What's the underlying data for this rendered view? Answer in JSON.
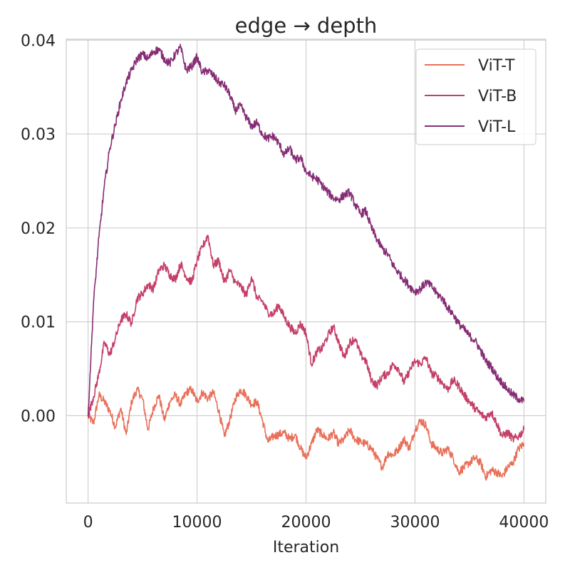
{
  "chart_data": {
    "type": "line",
    "title": "edge → depth",
    "xlabel": "Iteration",
    "ylabel": "",
    "xlim": [
      -2000,
      42000
    ],
    "ylim": [
      -0.0093,
      0.0401
    ],
    "xticks": [
      0,
      10000,
      20000,
      30000,
      40000
    ],
    "xtick_labels": [
      "0",
      "10000",
      "20000",
      "30000",
      "40000"
    ],
    "yticks": [
      0.0,
      0.01,
      0.02,
      0.03,
      0.04
    ],
    "ytick_labels": [
      "0.00",
      "0.01",
      "0.02",
      "0.03",
      "0.04"
    ],
    "grid": true,
    "legend_position": "top-right",
    "series": [
      {
        "name": "ViT-T",
        "color": "#e8705a",
        "x": [
          0,
          500,
          1000,
          1500,
          2000,
          2500,
          3000,
          3500,
          4000,
          4500,
          5000,
          5500,
          6000,
          6500,
          7000,
          7500,
          8000,
          8500,
          9000,
          9500,
          10000,
          10500,
          11000,
          11500,
          12000,
          12500,
          13000,
          13500,
          14000,
          14500,
          15000,
          15500,
          16000,
          16500,
          17000,
          17500,
          18000,
          18500,
          19000,
          19500,
          20000,
          20500,
          21000,
          21500,
          22000,
          22500,
          23000,
          23500,
          24000,
          24500,
          25000,
          25500,
          26000,
          26500,
          27000,
          27500,
          28000,
          28500,
          29000,
          29500,
          30000,
          30500,
          31000,
          31500,
          32000,
          32500,
          33000,
          33500,
          34000,
          34500,
          35000,
          35500,
          36000,
          36500,
          37000,
          37500,
          38000,
          38500,
          39000,
          39500,
          40000
        ],
        "y": [
          0.0,
          -0.0008,
          0.0022,
          0.0015,
          0.0005,
          -0.0012,
          0.0008,
          -0.002,
          0.0015,
          0.0028,
          0.0018,
          -0.0015,
          0.0008,
          0.0022,
          -0.0005,
          0.0015,
          0.0022,
          0.0012,
          0.0025,
          0.0028,
          0.0015,
          0.0025,
          0.0018,
          0.0025,
          0.0005,
          -0.0022,
          -0.0005,
          0.0018,
          0.0028,
          0.0022,
          0.0012,
          0.0015,
          -0.0005,
          -0.0028,
          -0.0022,
          -0.002,
          -0.0018,
          -0.0025,
          -0.002,
          -0.0035,
          -0.0045,
          -0.003,
          -0.0015,
          -0.002,
          -0.0025,
          -0.0018,
          -0.003,
          -0.0025,
          -0.0015,
          -0.0025,
          -0.0028,
          -0.003,
          -0.0035,
          -0.0045,
          -0.0055,
          -0.004,
          -0.0042,
          -0.0035,
          -0.0025,
          -0.0035,
          -0.0015,
          -0.0005,
          -0.001,
          -0.003,
          -0.0035,
          -0.004,
          -0.0035,
          -0.0045,
          -0.006,
          -0.0055,
          -0.005,
          -0.0045,
          -0.005,
          -0.0065,
          -0.0058,
          -0.006,
          -0.0065,
          -0.0055,
          -0.005,
          -0.0035,
          -0.003
        ]
      },
      {
        "name": "ViT-B",
        "color": "#c53f68",
        "x": [
          0,
          500,
          1000,
          1500,
          2000,
          2500,
          3000,
          3500,
          4000,
          4500,
          5000,
          5500,
          6000,
          6500,
          7000,
          7500,
          8000,
          8500,
          9000,
          9500,
          10000,
          10500,
          11000,
          11500,
          12000,
          12500,
          13000,
          13500,
          14000,
          14500,
          15000,
          15500,
          16000,
          16500,
          17000,
          17500,
          18000,
          18500,
          19000,
          19500,
          20000,
          20500,
          21000,
          21500,
          22000,
          22500,
          23000,
          23500,
          24000,
          24500,
          25000,
          25500,
          26000,
          26500,
          27000,
          27500,
          28000,
          28500,
          29000,
          29500,
          30000,
          30500,
          31000,
          31500,
          32000,
          32500,
          33000,
          33500,
          34000,
          34500,
          35000,
          35500,
          36000,
          36500,
          37000,
          37500,
          38000,
          38500,
          39000,
          39500,
          40000
        ],
        "y": [
          0.0,
          0.002,
          0.0045,
          0.0078,
          0.0065,
          0.0082,
          0.0102,
          0.0108,
          0.0098,
          0.0125,
          0.013,
          0.014,
          0.0135,
          0.0155,
          0.016,
          0.015,
          0.0145,
          0.0162,
          0.0148,
          0.0142,
          0.0165,
          0.018,
          0.0192,
          0.016,
          0.0165,
          0.0142,
          0.0155,
          0.0142,
          0.0138,
          0.0128,
          0.0148,
          0.0125,
          0.0122,
          0.011,
          0.0108,
          0.0118,
          0.0105,
          0.0095,
          0.0088,
          0.0098,
          0.0088,
          0.0055,
          0.0068,
          0.0072,
          0.0085,
          0.0095,
          0.0078,
          0.0062,
          0.0078,
          0.0082,
          0.0065,
          0.0058,
          0.0038,
          0.0032,
          0.0042,
          0.0045,
          0.0055,
          0.005,
          0.0035,
          0.0048,
          0.0058,
          0.0055,
          0.0062,
          0.0045,
          0.0042,
          0.0035,
          0.0028,
          0.0038,
          0.0032,
          0.0022,
          0.0015,
          0.0008,
          0.0002,
          -0.0002,
          0.0004,
          -0.0008,
          -0.0022,
          -0.0018,
          -0.0025,
          -0.0022,
          -0.0015
        ]
      },
      {
        "name": "ViT-L",
        "color": "#862d75",
        "x": [
          0,
          500,
          1000,
          1500,
          2000,
          2500,
          3000,
          3500,
          4000,
          4500,
          5000,
          5500,
          6000,
          6500,
          7000,
          7500,
          8000,
          8500,
          9000,
          9500,
          10000,
          10500,
          11000,
          11500,
          12000,
          12500,
          13000,
          13500,
          14000,
          14500,
          15000,
          15500,
          16000,
          16500,
          17000,
          17500,
          18000,
          18500,
          19000,
          19500,
          20000,
          20500,
          21000,
          21500,
          22000,
          22500,
          23000,
          23500,
          24000,
          24500,
          25000,
          25500,
          26000,
          26500,
          27000,
          27500,
          28000,
          28500,
          29000,
          29500,
          30000,
          30500,
          31000,
          31500,
          32000,
          32500,
          33000,
          33500,
          34000,
          34500,
          35000,
          35500,
          36000,
          36500,
          37000,
          37500,
          38000,
          38500,
          39000,
          39500,
          40000
        ],
        "y": [
          0.0,
          0.012,
          0.019,
          0.0245,
          0.0285,
          0.031,
          0.0335,
          0.0355,
          0.0368,
          0.038,
          0.0385,
          0.038,
          0.0388,
          0.039,
          0.038,
          0.0375,
          0.0385,
          0.0392,
          0.0368,
          0.0372,
          0.0382,
          0.0365,
          0.0368,
          0.0362,
          0.0355,
          0.0352,
          0.0342,
          0.0325,
          0.033,
          0.0318,
          0.0308,
          0.0312,
          0.03,
          0.0295,
          0.0298,
          0.029,
          0.0278,
          0.0285,
          0.0272,
          0.0275,
          0.026,
          0.0255,
          0.0252,
          0.0245,
          0.0238,
          0.0232,
          0.023,
          0.0235,
          0.0238,
          0.0225,
          0.0215,
          0.0218,
          0.02,
          0.0188,
          0.0178,
          0.0172,
          0.016,
          0.0152,
          0.0145,
          0.0138,
          0.0132,
          0.0135,
          0.0142,
          0.0138,
          0.013,
          0.0125,
          0.0115,
          0.0108,
          0.0098,
          0.0092,
          0.0085,
          0.008,
          0.007,
          0.0058,
          0.0052,
          0.0042,
          0.0035,
          0.0028,
          0.0022,
          0.0018,
          0.0015
        ]
      }
    ]
  }
}
